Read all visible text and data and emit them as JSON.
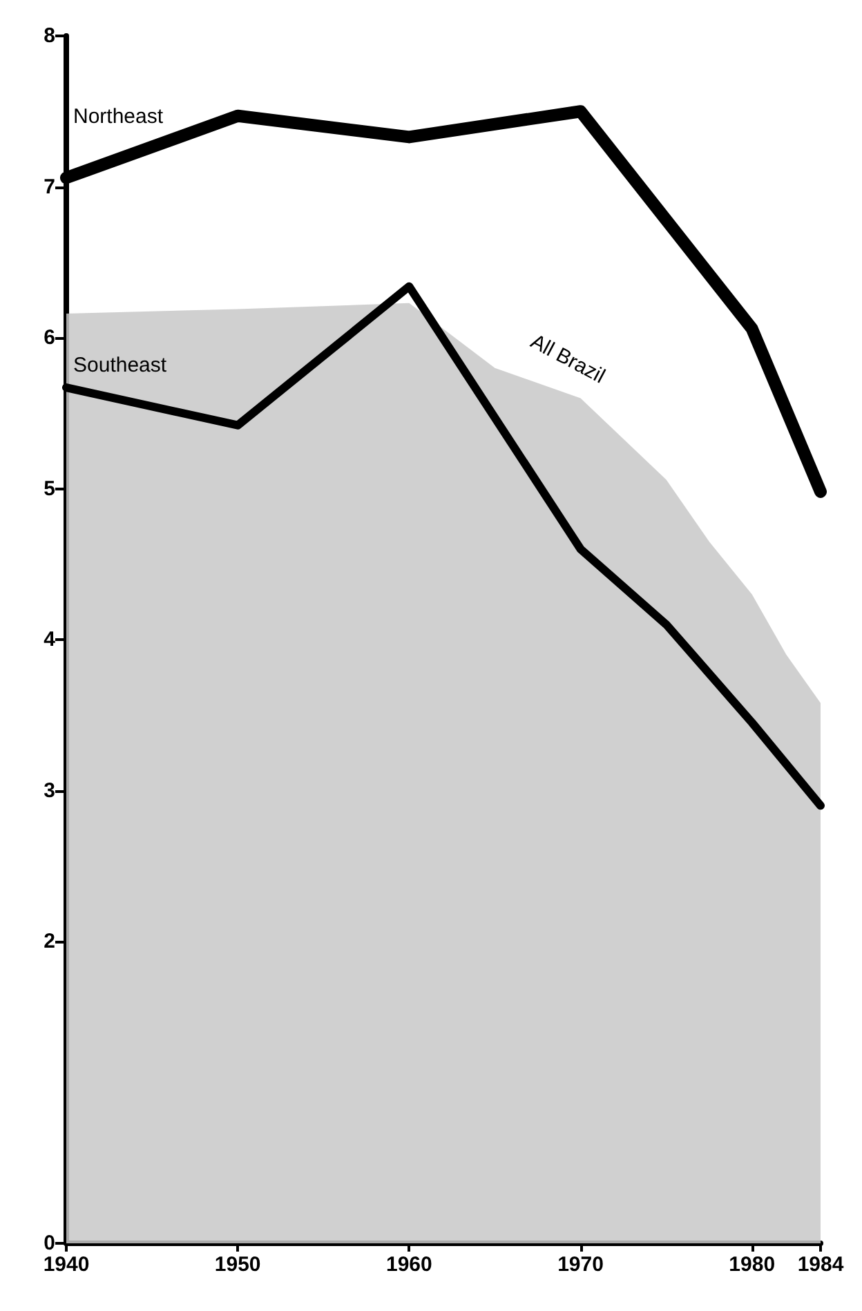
{
  "chart_data": {
    "type": "line",
    "xlim": [
      1940,
      1984
    ],
    "xticks": [
      1940,
      1950,
      1960,
      1970,
      1980,
      1984
    ],
    "ylim": [
      0,
      8
    ],
    "yticks": [
      0,
      2,
      3,
      4,
      5,
      6,
      7,
      8
    ],
    "grid": false,
    "legend": false,
    "marker": "none",
    "series": [
      {
        "name": "All Brazil",
        "type": "area",
        "color": "#c8c8c8",
        "x": [
          1940,
          1950,
          1960,
          1965,
          1970,
          1975,
          1977.5,
          1980,
          1982,
          1984
        ],
        "values": [
          6.16,
          6.19,
          6.23,
          5.8,
          5.6,
          5.06,
          4.65,
          4.3,
          3.9,
          3.58
        ]
      },
      {
        "name": "Northeast",
        "color": "#000000",
        "x": [
          1940,
          1950,
          1960,
          1970,
          1980,
          1984
        ],
        "values": [
          7.06,
          7.47,
          7.33,
          7.5,
          6.06,
          4.98
        ]
      },
      {
        "name": "Southeast",
        "color": "#000000",
        "x": [
          1940,
          1950,
          1960,
          1970,
          1975,
          1980,
          1984
        ],
        "values": [
          5.67,
          5.42,
          6.34,
          4.6,
          4.1,
          3.45,
          2.9
        ]
      }
    ]
  }
}
